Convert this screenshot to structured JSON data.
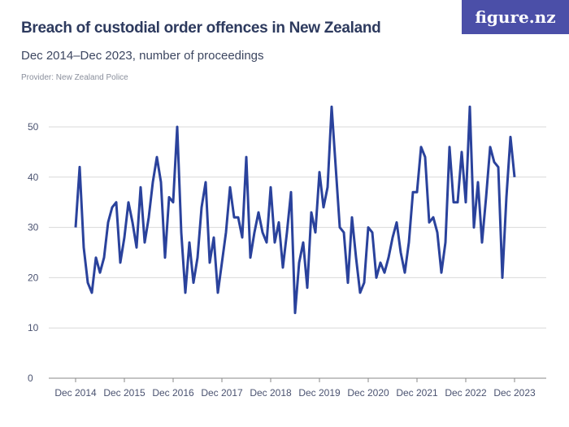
{
  "header": {
    "title": "Breach of custodial order offences in New Zealand",
    "subtitle": "Dec 2014–Dec 2023, number of proceedings",
    "provider": "Provider: New Zealand Police",
    "logo": "figure.nz"
  },
  "colors": {
    "line": "#2a429c",
    "grid": "#d9d9d9",
    "logo_bg": "#4b4fa8"
  },
  "chart_data": {
    "type": "line",
    "title": "Breach of custodial order offences in New Zealand",
    "x_frequency": "monthly",
    "x_start": "Dec 2014",
    "x_end": "Dec 2023",
    "x_tick_labels": [
      "Dec 2014",
      "Dec 2015",
      "Dec 2016",
      "Dec 2017",
      "Dec 2018",
      "Dec 2019",
      "Dec 2020",
      "Dec 2021",
      "Dec 2022",
      "Dec 2023"
    ],
    "y_tick_labels": [
      "0",
      "10",
      "20",
      "30",
      "40",
      "50"
    ],
    "ylim": [
      0,
      55
    ],
    "grid": true,
    "values": [
      30,
      42,
      26,
      19,
      17,
      24,
      21,
      24,
      31,
      34,
      35,
      23,
      28,
      35,
      31,
      26,
      38,
      27,
      32,
      39,
      44,
      39,
      24,
      36,
      35,
      50,
      29,
      17,
      27,
      19,
      24,
      34,
      39,
      23,
      28,
      17,
      23,
      29,
      38,
      32,
      32,
      28,
      44,
      24,
      29,
      33,
      29,
      27,
      38,
      27,
      31,
      22,
      29,
      37,
      13,
      23,
      27,
      18,
      33,
      29,
      41,
      34,
      38,
      54,
      42,
      30,
      29,
      19,
      32,
      24,
      17,
      19,
      30,
      29,
      20,
      23,
      21,
      24,
      28,
      31,
      25,
      21,
      27,
      37,
      37,
      46,
      44,
      31,
      32,
      29,
      21,
      27,
      46,
      35,
      35,
      45,
      35,
      54,
      30,
      39,
      27,
      36,
      46,
      43,
      42,
      20,
      36,
      48,
      40
    ]
  }
}
